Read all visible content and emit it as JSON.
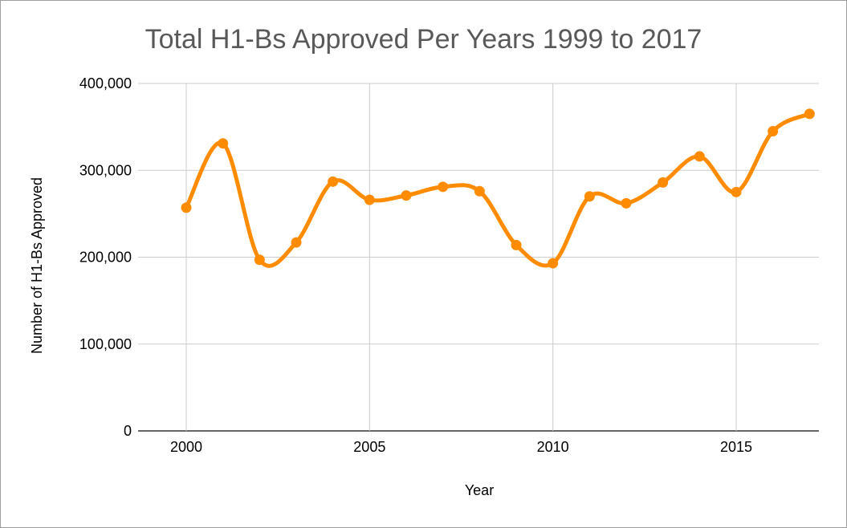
{
  "chart_data": {
    "type": "line",
    "title": "Total H1-Bs Approved Per Years 1999 to 2017",
    "xlabel": "Year",
    "ylabel": "Number of H1-Bs Approved",
    "x": [
      2000,
      2001,
      2002,
      2003,
      2004,
      2005,
      2006,
      2007,
      2008,
      2009,
      2010,
      2011,
      2012,
      2013,
      2014,
      2015,
      2016,
      2017
    ],
    "series": [
      {
        "values": [
          257000,
          331000,
          197000,
          217000,
          287000,
          266000,
          271000,
          281000,
          276000,
          214000,
          193000,
          270000,
          262000,
          286000,
          316000,
          275000,
          345000,
          365000
        ],
        "color": "#ff8c00"
      }
    ],
    "xlim": [
      1999,
      2017
    ],
    "ylim": [
      0,
      400000
    ],
    "x_ticks": [
      2000,
      2005,
      2010,
      2015
    ],
    "x_tick_labels": [
      "2000",
      "2005",
      "2010",
      "2015"
    ],
    "y_ticks": [
      0,
      100000,
      200000,
      300000,
      400000
    ],
    "y_tick_labels": [
      "0",
      "100,000",
      "200,000",
      "300,000",
      "400,000"
    ],
    "grid": true,
    "smooth": true
  }
}
